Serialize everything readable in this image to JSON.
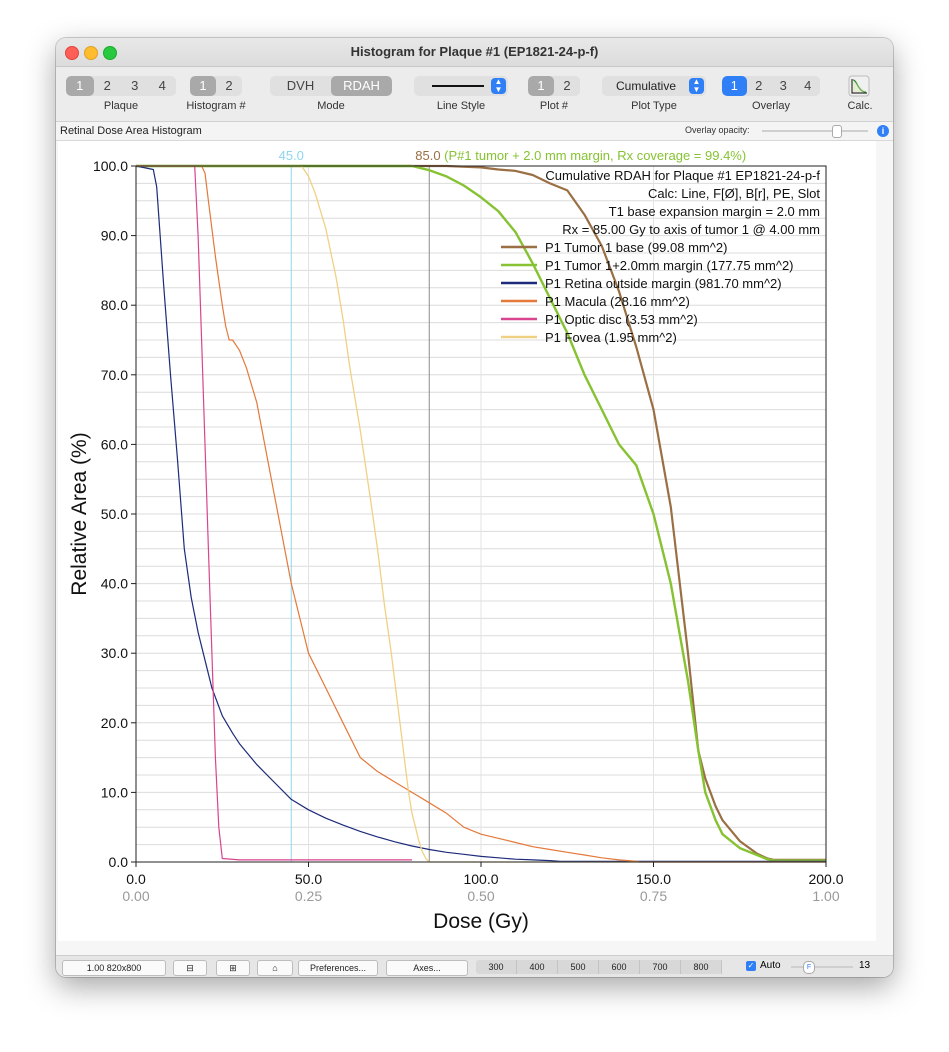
{
  "window": {
    "title": "Histogram for Plaque #1 (EP1821-24-p-f)"
  },
  "toolbar": {
    "plaque": {
      "items": [
        "1",
        "2",
        "3",
        "4"
      ],
      "selected": 0,
      "label": "Plaque"
    },
    "histogram": {
      "items": [
        "1",
        "2"
      ],
      "selected": 0,
      "label": "Histogram #"
    },
    "mode": {
      "items": [
        "DVH",
        "RDAH"
      ],
      "selected": 1,
      "label": "Mode"
    },
    "line_style": {
      "label": "Line Style"
    },
    "plot_num": {
      "items": [
        "1",
        "2"
      ],
      "selected": 0,
      "label": "Plot #"
    },
    "plot_type": {
      "value": "Cumulative",
      "label": "Plot Type"
    },
    "overlay": {
      "items": [
        "1",
        "2",
        "3",
        "4"
      ],
      "selected": 0,
      "label": "Overlay"
    },
    "calc": {
      "label": "Calc.",
      "icon": "histogram-calc-icon"
    }
  },
  "subbar": {
    "title": "Retinal Dose Area Histogram",
    "overlay_opacity_label": "Overlay opacity:",
    "overlay_opacity": 0.7,
    "info_icon": "info-icon"
  },
  "statusbar": {
    "zoom": "1.00 820x800",
    "zoom_out_icon": "zoom-out-icon",
    "zoom_in_icon": "zoom-in-icon",
    "home_icon": "home-icon",
    "preferences": "Preferences...",
    "axes": "Axes...",
    "sizes": [
      "300",
      "400",
      "500",
      "600",
      "700",
      "800"
    ],
    "auto_label": "Auto",
    "auto_checked": true,
    "font_slider_label": "F",
    "font_size": "13"
  },
  "colors": {
    "tumor_base": "#9a6f44",
    "tumor_margin": "#86c232",
    "retina": "#1d2b7a",
    "macula": "#e4793a",
    "optic_disc": "#d9448f",
    "fovea": "#f0d184",
    "marker_45": "#8fd7ee",
    "marker_85": "#8c8c8c"
  },
  "chart_data": {
    "type": "line",
    "xlabel": "Dose (Gy)",
    "ylabel": "Relative Area (%)",
    "xlim": [
      0,
      200
    ],
    "ylim": [
      0,
      100
    ],
    "x_ticks": [
      "0.0",
      "50.0",
      "100.0",
      "150.0",
      "200.0"
    ],
    "x_ticks_secondary": [
      "0.00",
      "0.25",
      "0.50",
      "0.75",
      "1.00"
    ],
    "y_ticks": [
      "0.0",
      "10.0",
      "20.0",
      "30.0",
      "40.0",
      "50.0",
      "60.0",
      "70.0",
      "80.0",
      "90.0",
      "100.0"
    ],
    "grid": true,
    "markers": [
      {
        "x": 45,
        "label": "45.0"
      },
      {
        "x": 85,
        "label": "85.0",
        "note": " (P#1 tumor + 2.0 mm margin, Rx coverage = 99.4%)"
      }
    ],
    "info_lines": [
      "Cumulative RDAH for Plaque #1 EP1821-24-p-f",
      "Calc: Line, F[Ø], B[r], PE, Slot",
      "T1  base expansion margin = 2.0 mm",
      "Rx = 85.00 Gy to axis of tumor 1 @ 4.00 mm"
    ],
    "legend_position": "top-right",
    "series": [
      {
        "name": "P1 Tumor 1 base (99.08 mm^2)",
        "x": [
          0,
          90,
          100,
          105,
          110,
          115,
          120,
          125,
          130,
          135,
          140,
          145,
          150,
          155,
          160,
          163,
          165,
          168,
          170,
          175,
          180,
          183,
          185,
          200
        ],
        "y": [
          100,
          100,
          99.8,
          99.5,
          99.3,
          98.7,
          97.5,
          96.5,
          93,
          88.5,
          82,
          74,
          65,
          51,
          30,
          16,
          12,
          8,
          6,
          3,
          1.2,
          0.5,
          0.3,
          0.3
        ]
      },
      {
        "name": "P1 Tumor 1+2.0mm margin (177.75 mm^2)",
        "x": [
          0,
          80,
          85,
          90,
          95,
          100,
          105,
          110,
          115,
          120,
          125,
          130,
          135,
          140,
          145,
          150,
          155,
          160,
          163,
          165,
          168,
          170,
          175,
          180,
          183,
          185,
          200
        ],
        "y": [
          100,
          100,
          99.4,
          98.5,
          97.2,
          95.5,
          93.5,
          90.5,
          86,
          81,
          76,
          70,
          65,
          60,
          57,
          50,
          40,
          26,
          16,
          10,
          6,
          4,
          2,
          1,
          0.4,
          0.2,
          0.2
        ]
      },
      {
        "name": "P1 Retina outside margin (981.70 mm^2)",
        "x": [
          0,
          5,
          6,
          8,
          10,
          12,
          14,
          16,
          18,
          20,
          22,
          25,
          28,
          30,
          35,
          40,
          45,
          50,
          55,
          60,
          65,
          70,
          75,
          80,
          85,
          90,
          95,
          100,
          105,
          110,
          115,
          120,
          123,
          200
        ],
        "y": [
          100,
          99.5,
          97,
          83,
          70,
          58,
          45,
          38,
          33,
          29,
          25,
          21,
          18.5,
          17,
          14,
          11.5,
          9,
          7.5,
          6.3,
          5.3,
          4.4,
          3.6,
          2.9,
          2.3,
          1.8,
          1.4,
          1.1,
          0.8,
          0.6,
          0.4,
          0.3,
          0.2,
          0.1,
          0.1
        ]
      },
      {
        "name": "P1 Macula (28.16 mm^2)",
        "x": [
          0,
          19,
          20,
          21,
          23,
          25,
          26,
          27,
          28,
          30,
          32,
          35,
          40,
          45,
          50,
          55,
          60,
          65,
          70,
          75,
          80,
          85,
          90,
          95,
          100,
          105,
          110,
          115,
          120,
          125,
          130,
          135,
          140,
          145,
          146,
          200
        ],
        "y": [
          100,
          100,
          99,
          95,
          87,
          80,
          77,
          75,
          75,
          73.5,
          71,
          66,
          53,
          40,
          30,
          25,
          20,
          15,
          13,
          11.5,
          10,
          8.5,
          7,
          5,
          4,
          3.4,
          2.8,
          2.2,
          1.8,
          1.4,
          1,
          0.6,
          0.3,
          0.1,
          0,
          0
        ]
      },
      {
        "name": "P1 Optic disc (3.53 mm^2)",
        "x": [
          0,
          17,
          18,
          19,
          20,
          21,
          22,
          23,
          24,
          25,
          30,
          80
        ],
        "y": [
          100,
          100,
          90,
          75,
          60,
          45,
          30,
          15,
          5,
          0.5,
          0.3,
          0.3
        ]
      },
      {
        "name": "P1 Fovea (1.95 mm^2)",
        "x": [
          0,
          48,
          50,
          52,
          55,
          58,
          60,
          62,
          65,
          68,
          70,
          72,
          74,
          76,
          77,
          78,
          79,
          80,
          81,
          82,
          83,
          84,
          85,
          200
        ],
        "y": [
          100,
          100,
          98.5,
          96,
          91,
          84,
          78,
          71,
          62,
          52,
          45,
          37,
          30,
          22,
          18,
          14,
          10,
          7,
          5,
          3,
          1.5,
          0.5,
          0,
          0
        ]
      }
    ]
  }
}
